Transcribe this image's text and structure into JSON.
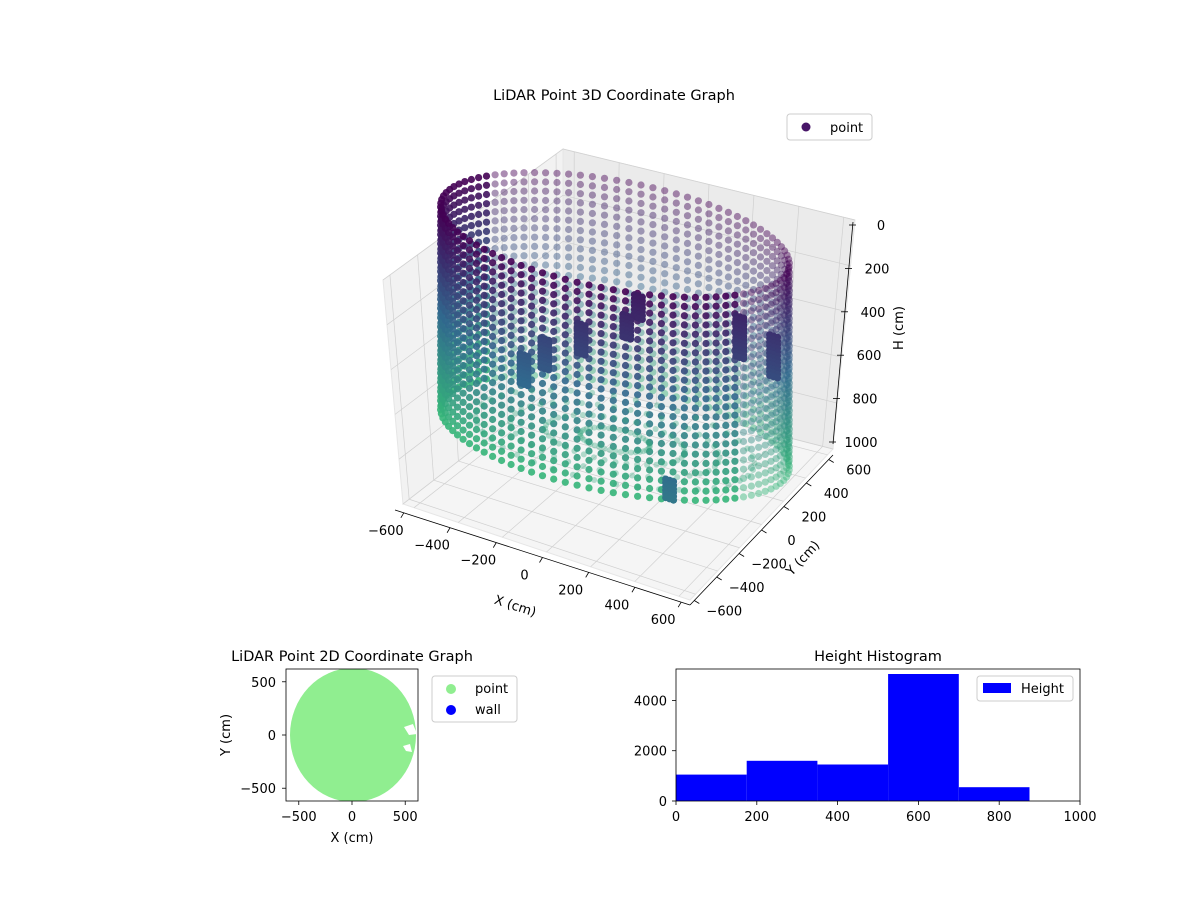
{
  "colors": {
    "viridis_start": "#440154",
    "viridis_mid": "#31688e",
    "viridis_end": "#35b779",
    "point_2d": "#90ee90",
    "wall_2d": "#0000ff",
    "histogram": "#0000ff",
    "pane": "#f2f2f2",
    "grid": "#d0d0d0"
  },
  "chart_data": [
    {
      "type": "scatter",
      "title": "LiDAR Point 3D Coordinate Graph",
      "xlabel": "X (cm)",
      "ylabel": "Y (cm)",
      "zlabel": "H (cm)",
      "xlim": [
        -650,
        650
      ],
      "ylim": [
        -650,
        650
      ],
      "zlim": [
        0,
        1000
      ],
      "z_inverted": true,
      "x_ticks": [
        "−600",
        "−400",
        "−200",
        "0",
        "200",
        "400",
        "600"
      ],
      "y_ticks": [
        "−600",
        "−400",
        "−200",
        "0",
        "200",
        "400",
        "600"
      ],
      "z_ticks": [
        "0",
        "200",
        "400",
        "600",
        "800",
        "1000"
      ],
      "legend": [
        "point"
      ],
      "legend_position": "upper right",
      "colormap": "viridis",
      "grid": true,
      "series": [
        {
          "name": "point",
          "shape": "cylinder",
          "radius": 600,
          "z_range": [
            0,
            1000
          ],
          "clusters": [
            [
              150,
              -120,
              200,
              320
            ],
            [
              120,
              -150,
              300,
              420
            ],
            [
              -40,
              -180,
              400,
              560
            ],
            [
              -200,
              -140,
              550,
              700
            ],
            [
              -320,
              -60,
              700,
              860
            ],
            [
              380,
              200,
              300,
              500
            ],
            [
              450,
              320,
              400,
              600
            ],
            [
              420,
              -420,
              900,
              1000
            ]
          ]
        }
      ]
    },
    {
      "type": "scatter",
      "title": "LiDAR Point 2D Coordinate Graph",
      "xlabel": "X (cm)",
      "ylabel": "Y (cm)",
      "xlim": [
        -620,
        620
      ],
      "ylim": [
        -620,
        620
      ],
      "x_ticks": [
        "−500",
        "0",
        "500"
      ],
      "y_ticks": [
        "500",
        "0",
        "−500"
      ],
      "legend": [
        "point",
        "wall"
      ],
      "legend_position": "outside right",
      "series": [
        {
          "name": "point",
          "shape": "filled-disc",
          "radius": 620,
          "gaps": [
            [
              510,
              80
            ],
            [
              520,
              -120
            ]
          ]
        },
        {
          "name": "wall",
          "points": []
        }
      ]
    },
    {
      "type": "bar",
      "title": "Height Histogram",
      "xlim": [
        0,
        1000
      ],
      "ylim": [
        0,
        5250
      ],
      "x_ticks": [
        "0",
        "200",
        "400",
        "600",
        "800",
        "1000"
      ],
      "y_ticks": [
        "0",
        "2000",
        "4000"
      ],
      "legend": [
        "Height"
      ],
      "legend_position": "upper right",
      "series": [
        {
          "name": "Height",
          "bins": [
            0,
            175,
            350,
            525,
            700,
            875
          ],
          "values": [
            1050,
            1600,
            1450,
            5050,
            550
          ]
        }
      ]
    }
  ]
}
